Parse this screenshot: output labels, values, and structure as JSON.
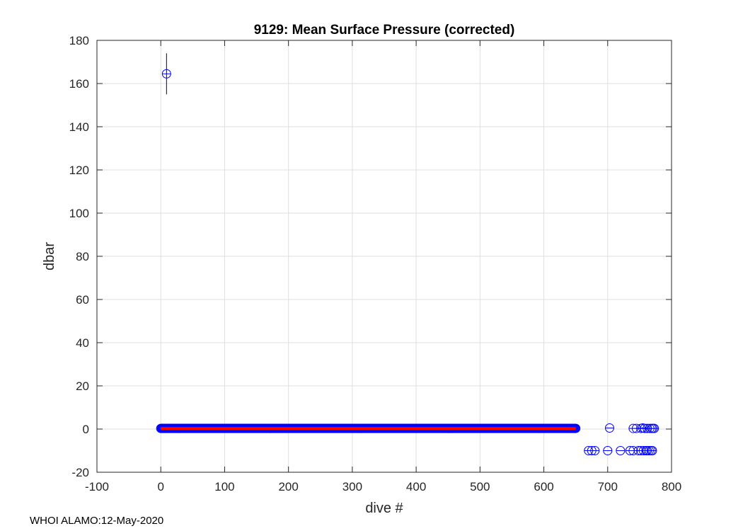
{
  "chart_data": {
    "type": "scatter",
    "title": "9129: Mean Surface Pressure (corrected)",
    "xlabel": "dive #",
    "ylabel": "dbar",
    "xlim": [
      -100,
      800
    ],
    "ylim": [
      -20,
      180
    ],
    "xticks": [
      -100,
      0,
      100,
      200,
      300,
      400,
      500,
      600,
      700,
      800
    ],
    "yticks": [
      -20,
      0,
      20,
      40,
      60,
      80,
      100,
      120,
      140,
      160,
      180
    ],
    "grid": true,
    "dense_series": {
      "name": "surface pressure (dense)",
      "x_start": 0,
      "x_end": 650,
      "step": 1,
      "y": 0.3,
      "color": "#0000ff"
    },
    "mean_line": {
      "x_start": 0,
      "x_end": 650,
      "y": 0.3,
      "color": "#ff0000"
    },
    "outliers": [
      {
        "x": 9,
        "y": 164.5,
        "err": 9.5
      },
      {
        "x": 703,
        "y": 0.5
      },
      {
        "x": 740,
        "y": 0.3
      },
      {
        "x": 745,
        "y": 0.3
      },
      {
        "x": 752,
        "y": 0.3
      },
      {
        "x": 755,
        "y": 0.5
      },
      {
        "x": 758,
        "y": 0.3
      },
      {
        "x": 762,
        "y": 0.3
      },
      {
        "x": 766,
        "y": 0.3
      },
      {
        "x": 769,
        "y": 0.3
      },
      {
        "x": 771,
        "y": 0.3
      },
      {
        "x": 773,
        "y": 0.3
      },
      {
        "x": 670,
        "y": -10
      },
      {
        "x": 675,
        "y": -10
      },
      {
        "x": 680,
        "y": -10
      },
      {
        "x": 700,
        "y": -10
      },
      {
        "x": 720,
        "y": -10
      },
      {
        "x": 735,
        "y": -10
      },
      {
        "x": 740,
        "y": -10
      },
      {
        "x": 748,
        "y": -10
      },
      {
        "x": 752,
        "y": -10
      },
      {
        "x": 756,
        "y": -10
      },
      {
        "x": 760,
        "y": -10
      },
      {
        "x": 762,
        "y": -10
      },
      {
        "x": 765,
        "y": -10
      },
      {
        "x": 768,
        "y": -10
      },
      {
        "x": 770,
        "y": -10
      }
    ]
  },
  "footer": "WHOI ALAMO:12-May-2020"
}
